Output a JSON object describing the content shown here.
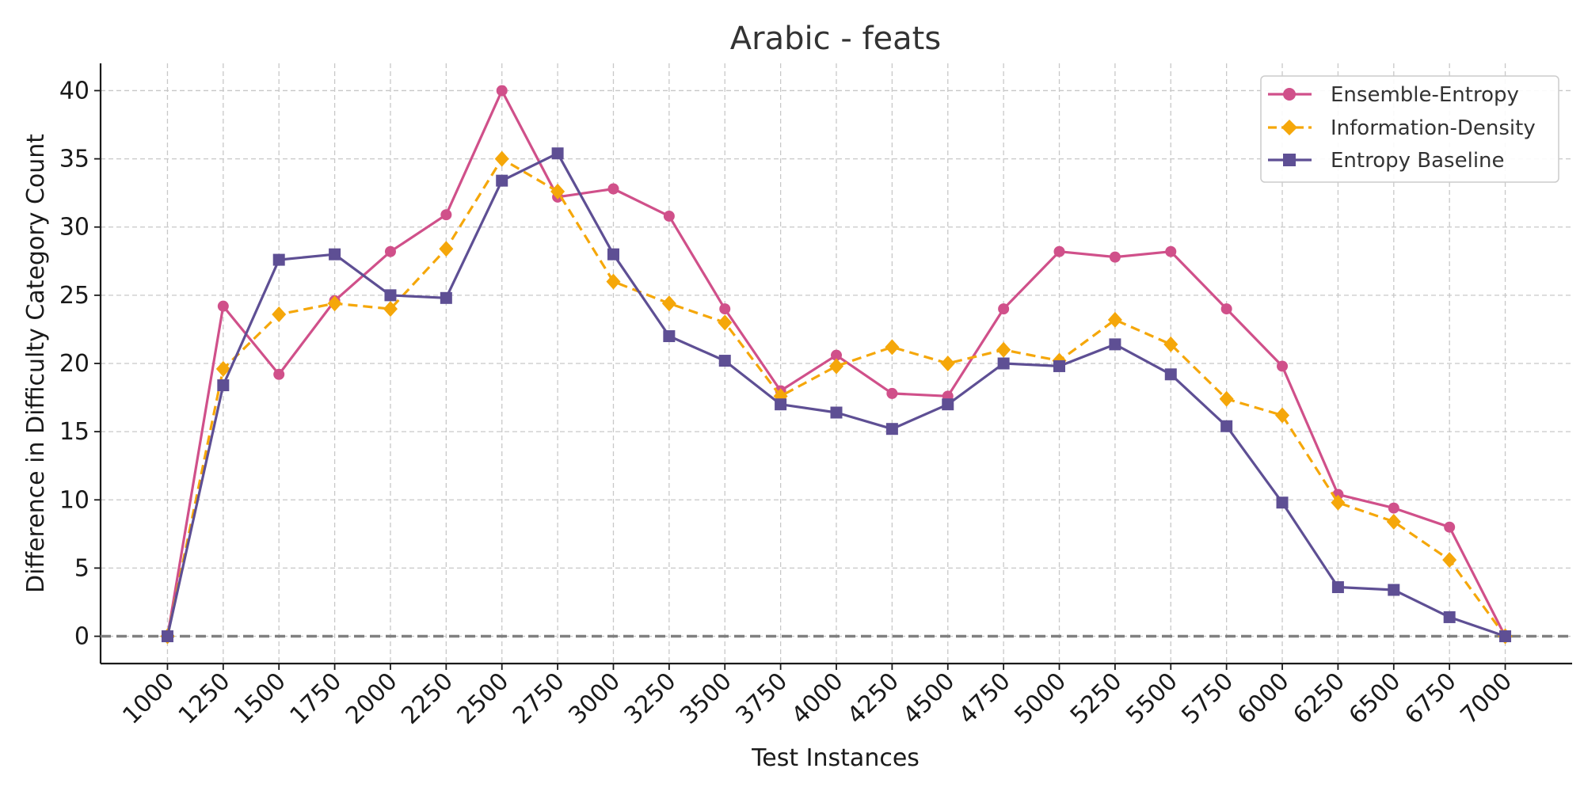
{
  "chart_data": {
    "type": "line",
    "title": "Arabic - feats",
    "xlabel": "Test Instances",
    "ylabel": "Difference in Difficulty Category Count",
    "x": [
      1000,
      1250,
      1500,
      1750,
      2000,
      2250,
      2500,
      2750,
      3000,
      3250,
      3500,
      3750,
      4000,
      4250,
      4500,
      4750,
      5000,
      5250,
      5500,
      5750,
      6000,
      6250,
      6500,
      6750,
      7000
    ],
    "xlim": [
      700,
      7300
    ],
    "ylim": [
      -2,
      42
    ],
    "yticks": [
      0,
      5,
      10,
      15,
      20,
      25,
      30,
      35,
      40
    ],
    "grid": true,
    "legend_position": "top-right",
    "reference_line": {
      "y": 0,
      "color": "#808080",
      "style": "dashed"
    },
    "series": [
      {
        "name": "Ensemble-Entropy",
        "color": "#d0508a",
        "marker": "circle",
        "line_style": "solid",
        "values": [
          0,
          24.2,
          19.2,
          24.6,
          28.2,
          30.9,
          40,
          32.2,
          32.8,
          30.8,
          24,
          18,
          20.6,
          17.8,
          17.6,
          24,
          28.2,
          27.8,
          28.2,
          24,
          19.8,
          10.4,
          9.4,
          8,
          0
        ]
      },
      {
        "name": "Information-Density",
        "color": "#f5a70a",
        "marker": "diamond",
        "line_style": "dashed",
        "values": [
          0,
          19.6,
          23.6,
          24.4,
          24,
          28.4,
          35,
          32.6,
          26,
          24.4,
          23,
          17.6,
          19.8,
          21.2,
          20,
          21,
          20.2,
          23.2,
          21.4,
          17.4,
          16.2,
          9.8,
          8.4,
          5.6,
          0
        ]
      },
      {
        "name": "Entropy Baseline",
        "color": "#5e4f94",
        "marker": "square",
        "line_style": "solid",
        "values": [
          0,
          18.4,
          27.6,
          28,
          25,
          24.8,
          33.4,
          35.4,
          28,
          22,
          20.2,
          17,
          16.4,
          15.2,
          17,
          20,
          19.8,
          21.4,
          19.2,
          15.4,
          9.8,
          3.6,
          3.4,
          1.4,
          0
        ]
      }
    ]
  }
}
